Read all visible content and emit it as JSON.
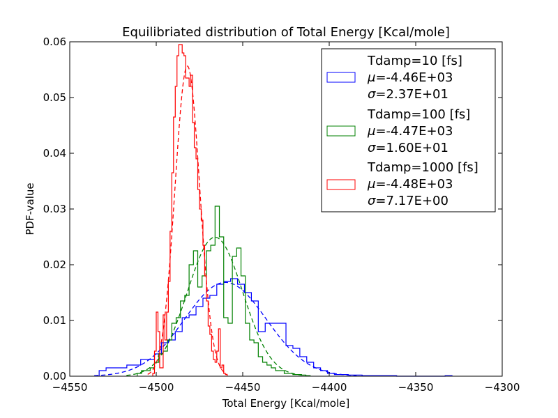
{
  "chart_data": {
    "type": "histogram",
    "title": "Equilibriated distribution of Total Energy [Kcal/mole]",
    "xlabel": "Total Energy [Kcal/mole]",
    "ylabel": "PDF-value",
    "xlim": [
      -4550,
      -4300
    ],
    "ylim": [
      0.0,
      0.06
    ],
    "xticks": [
      -4550,
      -4500,
      -4450,
      -4400,
      -4350,
      -4300
    ],
    "xtick_labels": [
      "−4550",
      "−4500",
      "−4450",
      "−4400",
      "−4350",
      "−4300"
    ],
    "yticks": [
      0.0,
      0.01,
      0.02,
      0.03,
      0.04,
      0.05,
      0.06
    ],
    "ytick_labels": [
      "0.00",
      "0.01",
      "0.02",
      "0.03",
      "0.04",
      "0.05",
      "0.06"
    ],
    "legend_position": "top-right",
    "series": [
      {
        "name": "Tdamp=10 [fs]",
        "mu_label": "-4.46E+03",
        "sigma_label": "2.37E+01",
        "color": "#0000ff",
        "mean": -4460,
        "std": 23.7,
        "bin_edges": [
          -4533,
          -4529,
          -4525,
          -4521,
          -4517,
          -4513,
          -4509,
          -4505,
          -4501,
          -4497,
          -4493,
          -4489,
          -4485,
          -4481,
          -4477,
          -4473,
          -4469,
          -4465,
          -4461,
          -4457,
          -4453,
          -4449,
          -4445,
          -4441,
          -4437,
          -4433,
          -4429,
          -4425,
          -4421,
          -4417,
          -4413,
          -4409,
          -4405,
          -4401,
          -4397,
          -4393,
          -4389,
          -4385,
          -4381,
          -4377,
          -4373,
          -4369,
          -4365,
          -4361,
          -4357,
          -4353,
          -4349,
          -4345,
          -4341,
          -4337,
          -4333,
          -4329
        ],
        "values": [
          0.001,
          0.0015,
          0.0015,
          0.0015,
          0.002,
          0.002,
          0.003,
          0.003,
          0.004,
          0.006,
          0.0065,
          0.008,
          0.0105,
          0.011,
          0.0125,
          0.014,
          0.0145,
          0.0165,
          0.017,
          0.0175,
          0.0165,
          0.015,
          0.0135,
          0.008,
          0.0095,
          0.0095,
          0.0095,
          0.0055,
          0.005,
          0.0035,
          0.0025,
          0.0015,
          0.001,
          0.0005,
          0.0003,
          0.0003,
          0.0002,
          0.0002,
          0.0001,
          0.0001,
          0.0001,
          0.0001,
          0.0001,
          0,
          0,
          0,
          0,
          0,
          0,
          0,
          0.0001
        ]
      },
      {
        "name": "Tdamp=100 [fs]",
        "mu_label": "-4.47E+03",
        "sigma_label": "1.60E+01",
        "color": "#008000",
        "mean": -4466,
        "std": 16.0,
        "bin_edges": [
          -4511,
          -4508.5,
          -4506,
          -4503.5,
          -4501,
          -4498.5,
          -4496,
          -4493.5,
          -4491,
          -4488.5,
          -4486,
          -4483.5,
          -4481,
          -4478.5,
          -4476,
          -4473.5,
          -4471,
          -4468.5,
          -4466,
          -4463.5,
          -4461,
          -4458.5,
          -4456,
          -4453.5,
          -4451,
          -4448.5,
          -4446,
          -4443.5,
          -4441,
          -4438.5,
          -4436,
          -4433.5,
          -4431,
          -4428.5,
          -4426,
          -4423.5,
          -4421,
          -4418.5,
          -4416,
          -4413.5,
          -4411
        ],
        "values": [
          0.0005,
          0.001,
          0.001,
          0.0015,
          0.0025,
          0.004,
          0.0045,
          0.0065,
          0.0095,
          0.0105,
          0.0135,
          0.0145,
          0.02,
          0.0225,
          0.016,
          0.018,
          0.0225,
          0.0235,
          0.0305,
          0.025,
          0.0105,
          0.0095,
          0.0215,
          0.023,
          0.018,
          0.0095,
          0.0065,
          0.006,
          0.0035,
          0.0025,
          0.002,
          0.0015,
          0.001,
          0.001,
          0.0005,
          0.0005,
          0.0003,
          0.0003,
          0.0002,
          0.0001
        ]
      },
      {
        "name": "Tdamp=1000 [fs]",
        "mu_label": "-4.48E+03",
        "sigma_label": "7.17E+00",
        "color": "#ff0000",
        "mean": -4482,
        "std": 7.17,
        "bin_edges": [
          -4502,
          -4501,
          -4500,
          -4499,
          -4498,
          -4497,
          -4496,
          -4495,
          -4494,
          -4493,
          -4492,
          -4491,
          -4490,
          -4489,
          -4488,
          -4487,
          -4486,
          -4485,
          -4484,
          -4483,
          -4482,
          -4481,
          -4480,
          -4479,
          -4478,
          -4477,
          -4476,
          -4475,
          -4474,
          -4473,
          -4472,
          -4471,
          -4470,
          -4469,
          -4468,
          -4467,
          -4466,
          -4465,
          -4464,
          -4463,
          -4462,
          -4461,
          -4460,
          -4459
        ],
        "values": [
          0.0005,
          0.0045,
          0.0115,
          0.008,
          0.0015,
          0.0015,
          0.011,
          0.0065,
          0.0115,
          0.017,
          0.026,
          0.0365,
          0.0465,
          0.052,
          0.0575,
          0.0595,
          0.0595,
          0.058,
          0.0575,
          0.0535,
          0.0535,
          0.052,
          0.054,
          0.0455,
          0.041,
          0.039,
          0.0335,
          0.03,
          0.028,
          0.0235,
          0.018,
          0.0135,
          0.009,
          0.0075,
          0.0045,
          0.003,
          0.0025,
          0.0045,
          0.0085,
          0.0015,
          0.002,
          0.0005,
          0.0003
        ]
      }
    ]
  }
}
